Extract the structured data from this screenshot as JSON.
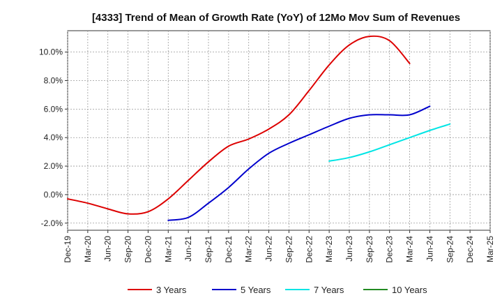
{
  "chart_data": {
    "type": "line",
    "title": "[4333]  Trend of Mean of Growth Rate (YoY) of 12Mo Mov Sum of Revenues",
    "xlabel": "",
    "ylabel": "",
    "ylim": [
      -2.5,
      11.5
    ],
    "y_ticks": [
      -2,
      0,
      2,
      4,
      6,
      8,
      10
    ],
    "y_tick_labels": [
      "-2.0%",
      "0.0%",
      "2.0%",
      "4.0%",
      "6.0%",
      "8.0%",
      "10.0%"
    ],
    "x_ticks": [
      "Dec-19",
      "Mar-20",
      "Jun-20",
      "Sep-20",
      "Dec-20",
      "Mar-21",
      "Jun-21",
      "Sep-21",
      "Dec-21",
      "Mar-22",
      "Jun-22",
      "Sep-22",
      "Dec-22",
      "Mar-23",
      "Jun-23",
      "Sep-23",
      "Dec-23",
      "Mar-24",
      "Jun-24",
      "Sep-24",
      "Dec-24",
      "Mar-25"
    ],
    "grid": true,
    "legend_position": "bottom",
    "series": [
      {
        "name": "3 Years",
        "color": "#dd0000",
        "start_index": 0,
        "values": [
          -0.3,
          -0.6,
          -1.0,
          -1.35,
          -1.2,
          -0.3,
          1.0,
          2.3,
          3.4,
          3.9,
          4.6,
          5.6,
          7.3,
          9.1,
          10.5,
          11.1,
          10.8,
          9.2
        ]
      },
      {
        "name": "5 Years",
        "color": "#0000cc",
        "start_index": 5,
        "values": [
          -1.8,
          -1.6,
          -0.6,
          0.5,
          1.8,
          2.9,
          3.6,
          4.2,
          4.8,
          5.35,
          5.6,
          5.6,
          5.6,
          6.2
        ]
      },
      {
        "name": "7 Years",
        "color": "#00e5e5",
        "start_index": 13,
        "values": [
          2.35,
          2.6,
          3.0,
          3.5,
          4.0,
          4.5,
          4.95
        ]
      },
      {
        "name": "10 Years",
        "color": "#228b22",
        "start_index": 0,
        "values": []
      }
    ]
  }
}
